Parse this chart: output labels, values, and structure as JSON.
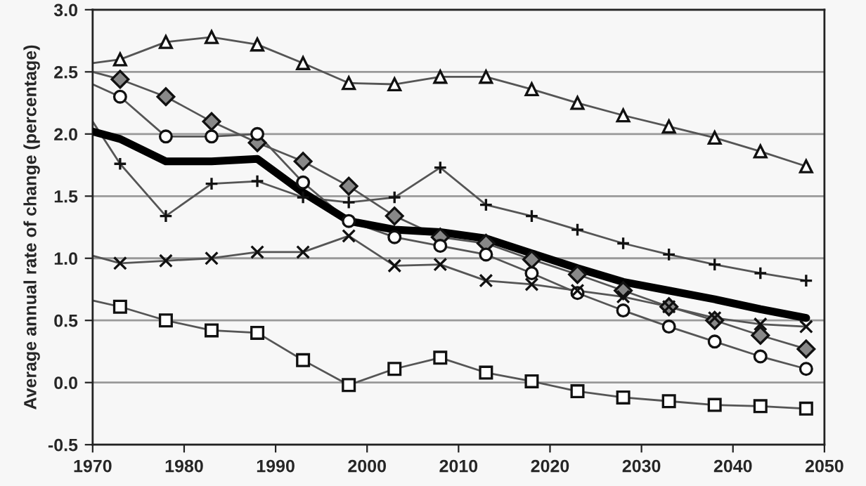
{
  "chart_data": {
    "type": "line",
    "ylabel": "Average annual rate of change (percentage)",
    "x": [
      1970,
      1973,
      1978,
      1983,
      1988,
      1993,
      1998,
      2003,
      2008,
      2013,
      2018,
      2023,
      2028,
      2033,
      2038,
      2043,
      2048
    ],
    "series": [
      {
        "color": "#555555",
        "marker": "triangle",
        "values": [
          2.57,
          2.6,
          2.74,
          2.78,
          2.72,
          2.57,
          2.41,
          2.4,
          2.46,
          2.46,
          2.36,
          2.25,
          2.15,
          2.06,
          1.97,
          1.86,
          1.74
        ]
      },
      {
        "color": "#555555",
        "marker": "diamond",
        "values": [
          2.5,
          2.44,
          2.3,
          2.1,
          1.93,
          1.78,
          1.58,
          1.34,
          1.17,
          1.12,
          0.99,
          0.87,
          0.74,
          0.61,
          0.5,
          0.38,
          0.27
        ]
      },
      {
        "color": "#555555",
        "marker": "circle",
        "values": [
          2.4,
          2.3,
          1.98,
          1.98,
          2.0,
          1.61,
          1.3,
          1.17,
          1.1,
          1.03,
          0.88,
          0.72,
          0.58,
          0.45,
          0.33,
          0.21,
          0.11
        ]
      },
      {
        "color": "#555555",
        "marker": "plus",
        "values": [
          2.1,
          1.76,
          1.34,
          1.6,
          1.62,
          1.49,
          1.45,
          1.49,
          1.73,
          1.43,
          1.34,
          1.23,
          1.12,
          1.03,
          0.95,
          0.88,
          0.82
        ]
      },
      {
        "color": "#555555",
        "marker": "cross",
        "values": [
          1.02,
          0.96,
          0.98,
          1.0,
          1.05,
          1.05,
          1.18,
          0.94,
          0.95,
          0.82,
          0.79,
          0.74,
          0.69,
          0.61,
          0.52,
          0.47,
          0.45
        ]
      },
      {
        "color": "#555555",
        "marker": "square",
        "values": [
          0.66,
          0.61,
          0.5,
          0.42,
          0.4,
          0.18,
          -0.02,
          0.11,
          0.2,
          0.08,
          0.01,
          -0.07,
          -0.12,
          -0.15,
          -0.18,
          -0.19,
          -0.21
        ]
      },
      {
        "color": "#000000",
        "marker": "none",
        "values": [
          2.02,
          1.96,
          1.78,
          1.78,
          1.8,
          1.53,
          1.3,
          1.23,
          1.21,
          1.16,
          1.04,
          0.92,
          0.81,
          0.74,
          0.67,
          0.59,
          0.52
        ]
      }
    ],
    "xlim": [
      1970,
      2050
    ],
    "xticks": [
      1970,
      1980,
      1990,
      2000,
      2010,
      2020,
      2030,
      2040,
      2050
    ],
    "ylim": [
      -0.5,
      3.0
    ],
    "yticks": [
      {
        "value": -0.5,
        "label": "-0.5"
      },
      {
        "value": 0,
        "label": "0.0"
      },
      {
        "value": 0.5,
        "label": "0.5"
      },
      {
        "value": 1.0,
        "label": "1.0"
      },
      {
        "value": 1.5,
        "label": "1.5"
      },
      {
        "value": 2.0,
        "label": "2.0"
      },
      {
        "value": 2.5,
        "label": "2.5"
      },
      {
        "value": 3.0,
        "label": "3.0"
      }
    ],
    "grid": "y",
    "line_style": "solid"
  }
}
